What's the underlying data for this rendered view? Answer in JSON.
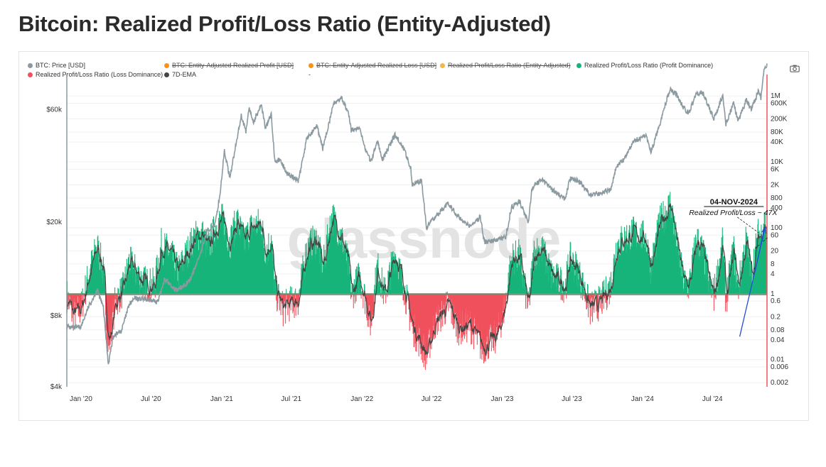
{
  "page": {
    "title": "Bitcoin: Realized Profit/Loss Ratio (Entity-Adjusted)"
  },
  "watermark": "glassnode",
  "legend": [
    {
      "label": "BTC: Price [USD]",
      "color": "#8b9aa0",
      "hidden": false
    },
    {
      "label": "BTC: Entity-Adjusted Realized Profit [USD]",
      "color": "#f7931a",
      "hidden": true
    },
    {
      "label": "BTC: Entity-Adjusted Realized Loss [USD]",
      "color": "#f7931a",
      "hidden": true
    },
    {
      "label": "Realized Profit/Loss Ratio (Entity-Adjusted)",
      "color": "#f2b84b",
      "hidden": true
    },
    {
      "label": "Realized Profit/Loss Ratio (Profit Dominance)",
      "color": "#17b47a",
      "hidden": false
    },
    {
      "label": "Realized Profit/Loss Ratio (Loss Dominance)",
      "color": "#f0515d",
      "hidden": false
    },
    {
      "label": "7D-EMA",
      "color": "#444444",
      "hidden": false
    },
    {
      "label": "-",
      "color": "",
      "hidden": false
    }
  ],
  "toolbar": {
    "camera_icon": "camera-icon"
  },
  "annotation": {
    "date": "04-NOV-2024",
    "text": "Realized Profit/Loss ~ 47X"
  },
  "chart_data": {
    "type": "line",
    "title": "Bitcoin: Realized Profit/Loss Ratio (Entity-Adjusted)",
    "x_tick_labels": [
      "Jan '20",
      "Jul '20",
      "Jan '21",
      "Jul '21",
      "Jan '22",
      "Jul '22",
      "Jan '23",
      "Jul '23",
      "Jan '24",
      "Jul '24"
    ],
    "x_range": [
      "2019-11-25",
      "2024-11-20"
    ],
    "left_axis": {
      "scale": "log",
      "tick_labels": [
        "$60k",
        "$20k",
        "$8k",
        "$4k"
      ],
      "tick_values": [
        60000,
        20000,
        8000,
        4000
      ],
      "range": [
        4000,
        80000
      ]
    },
    "right_axis": {
      "scale": "log",
      "tick_labels": [
        "1M",
        "600K",
        "200K",
        "80K",
        "40K",
        "10K",
        "6K",
        "2K",
        "800",
        "400",
        "100",
        "60",
        "20",
        "8",
        "4",
        "1",
        "0.6",
        "0.2",
        "0.08",
        "0.04",
        "0.01",
        "0.006",
        "0.002"
      ],
      "tick_values": [
        1000000,
        600000,
        200000,
        80000,
        40000,
        10000,
        6000,
        2000,
        800,
        400,
        100,
        60,
        20,
        8,
        4,
        1,
        0.6,
        0.2,
        0.08,
        0.04,
        0.01,
        0.006,
        0.002
      ],
      "range": [
        0.0015,
        3000000
      ]
    },
    "series": [
      {
        "name": "BTC: Price [USD]",
        "axis": "left",
        "color": "#8b9aa0",
        "points": [
          [
            "2019-11-25",
            7200
          ],
          [
            "2019-12-15",
            7100
          ],
          [
            "2020-01-01",
            7200
          ],
          [
            "2020-01-20",
            8700
          ],
          [
            "2020-02-12",
            10300
          ],
          [
            "2020-02-28",
            8700
          ],
          [
            "2020-03-12",
            5000
          ],
          [
            "2020-03-25",
            6600
          ],
          [
            "2020-04-15",
            6900
          ],
          [
            "2020-05-05",
            8900
          ],
          [
            "2020-05-20",
            9500
          ],
          [
            "2020-06-15",
            9400
          ],
          [
            "2020-07-20",
            9200
          ],
          [
            "2020-08-05",
            11500
          ],
          [
            "2020-09-05",
            10200
          ],
          [
            "2020-10-10",
            11300
          ],
          [
            "2020-10-25",
            13000
          ],
          [
            "2020-11-10",
            15300
          ],
          [
            "2020-11-25",
            18500
          ],
          [
            "2020-12-15",
            19500
          ],
          [
            "2020-12-28",
            26500
          ],
          [
            "2021-01-08",
            40000
          ],
          [
            "2021-01-22",
            31000
          ],
          [
            "2021-02-10",
            45000
          ],
          [
            "2021-02-21",
            57000
          ],
          [
            "2021-03-05",
            48000
          ],
          [
            "2021-03-13",
            61000
          ],
          [
            "2021-03-25",
            53000
          ],
          [
            "2021-04-14",
            63000
          ],
          [
            "2021-04-25",
            50000
          ],
          [
            "2021-05-10",
            57000
          ],
          [
            "2021-05-19",
            37000
          ],
          [
            "2021-06-05",
            36000
          ],
          [
            "2021-06-22",
            32000
          ],
          [
            "2021-07-20",
            30000
          ],
          [
            "2021-08-10",
            45000
          ],
          [
            "2021-09-06",
            51000
          ],
          [
            "2021-09-21",
            41000
          ],
          [
            "2021-10-10",
            55000
          ],
          [
            "2021-10-20",
            64000
          ],
          [
            "2021-11-10",
            67000
          ],
          [
            "2021-11-28",
            57000
          ],
          [
            "2021-12-04",
            49000
          ],
          [
            "2021-12-25",
            50000
          ],
          [
            "2022-01-10",
            41000
          ],
          [
            "2022-01-24",
            36000
          ],
          [
            "2022-02-10",
            44000
          ],
          [
            "2022-02-24",
            37000
          ],
          [
            "2022-03-28",
            47000
          ],
          [
            "2022-04-20",
            41000
          ],
          [
            "2022-05-08",
            34000
          ],
          [
            "2022-05-12",
            29000
          ],
          [
            "2022-06-05",
            30000
          ],
          [
            "2022-06-18",
            19000
          ],
          [
            "2022-07-10",
            21000
          ],
          [
            "2022-08-14",
            24000
          ],
          [
            "2022-09-10",
            21000
          ],
          [
            "2022-10-10",
            19200
          ],
          [
            "2022-11-05",
            21000
          ],
          [
            "2022-11-15",
            16500
          ],
          [
            "2022-12-20",
            16800
          ],
          [
            "2023-01-10",
            17300
          ],
          [
            "2023-01-25",
            23000
          ],
          [
            "2023-02-15",
            24500
          ],
          [
            "2023-03-10",
            20000
          ],
          [
            "2023-03-20",
            28000
          ],
          [
            "2023-04-14",
            30500
          ],
          [
            "2023-05-10",
            27500
          ],
          [
            "2023-06-15",
            25000
          ],
          [
            "2023-06-25",
            30500
          ],
          [
            "2023-07-15",
            30300
          ],
          [
            "2023-08-18",
            26200
          ],
          [
            "2023-09-15",
            26500
          ],
          [
            "2023-10-10",
            27500
          ],
          [
            "2023-10-25",
            34500
          ],
          [
            "2023-11-15",
            37000
          ],
          [
            "2023-12-08",
            44000
          ],
          [
            "2024-01-10",
            46500
          ],
          [
            "2024-01-23",
            39500
          ],
          [
            "2024-02-15",
            52000
          ],
          [
            "2024-03-05",
            67000
          ],
          [
            "2024-03-14",
            73000
          ],
          [
            "2024-04-01",
            69000
          ],
          [
            "2024-04-17",
            61000
          ],
          [
            "2024-05-01",
            58000
          ],
          [
            "2024-05-21",
            71000
          ],
          [
            "2024-06-07",
            70000
          ],
          [
            "2024-06-24",
            60500
          ],
          [
            "2024-07-05",
            55000
          ],
          [
            "2024-07-28",
            69000
          ],
          [
            "2024-08-05",
            52000
          ],
          [
            "2024-08-25",
            64000
          ],
          [
            "2024-09-06",
            53500
          ],
          [
            "2024-09-27",
            66000
          ],
          [
            "2024-10-10",
            60000
          ],
          [
            "2024-10-29",
            72000
          ],
          [
            "2024-11-04",
            67500
          ],
          [
            "2024-11-12",
            88000
          ],
          [
            "2024-11-20",
            92000
          ]
        ]
      },
      {
        "name": "Realized Profit/Loss Ratio (Entity-Adjusted)",
        "axis": "right",
        "profit_color": "#17b47a",
        "loss_color": "#f0515d",
        "baseline": 1,
        "points": [
          [
            "2019-11-25",
            0.8
          ],
          [
            "2019-12-10",
            0.2
          ],
          [
            "2020-01-01",
            0.3
          ],
          [
            "2020-01-20",
            3
          ],
          [
            "2020-02-12",
            25
          ],
          [
            "2020-02-28",
            4
          ],
          [
            "2020-03-12",
            0.02
          ],
          [
            "2020-03-30",
            0.5
          ],
          [
            "2020-04-20",
            1.2
          ],
          [
            "2020-05-05",
            8
          ],
          [
            "2020-06-10",
            2
          ],
          [
            "2020-07-10",
            1.5
          ],
          [
            "2020-07-28",
            25
          ],
          [
            "2020-08-20",
            15
          ],
          [
            "2020-09-10",
            4
          ],
          [
            "2020-10-20",
            40
          ],
          [
            "2020-11-10",
            60
          ],
          [
            "2020-11-26",
            20
          ],
          [
            "2020-12-20",
            120
          ],
          [
            "2021-01-05",
            150
          ],
          [
            "2021-01-22",
            30
          ],
          [
            "2021-02-10",
            150
          ],
          [
            "2021-03-01",
            30
          ],
          [
            "2021-03-15",
            80
          ],
          [
            "2021-04-14",
            120
          ],
          [
            "2021-04-25",
            15
          ],
          [
            "2021-05-10",
            40
          ],
          [
            "2021-05-19",
            1.2
          ],
          [
            "2021-06-10",
            0.3
          ],
          [
            "2021-06-22",
            0.4
          ],
          [
            "2021-07-20",
            0.6
          ],
          [
            "2021-08-10",
            20
          ],
          [
            "2021-09-06",
            40
          ],
          [
            "2021-09-21",
            5
          ],
          [
            "2021-10-15",
            200
          ],
          [
            "2021-11-10",
            40
          ],
          [
            "2021-11-28",
            5
          ],
          [
            "2021-12-05",
            0.8
          ],
          [
            "2021-12-25",
            3
          ],
          [
            "2022-01-10",
            0.6
          ],
          [
            "2022-01-24",
            0.1
          ],
          [
            "2022-02-10",
            6
          ],
          [
            "2022-03-01",
            0.8
          ],
          [
            "2022-03-28",
            15
          ],
          [
            "2022-04-20",
            1.5
          ],
          [
            "2022-05-10",
            0.1
          ],
          [
            "2022-06-18",
            0.012
          ],
          [
            "2022-07-10",
            0.12
          ],
          [
            "2022-08-14",
            0.4
          ],
          [
            "2022-09-10",
            0.08
          ],
          [
            "2022-10-10",
            0.1
          ],
          [
            "2022-11-10",
            0.02
          ],
          [
            "2022-12-20",
            0.05
          ],
          [
            "2023-01-10",
            0.5
          ],
          [
            "2023-01-25",
            10
          ],
          [
            "2023-02-15",
            12
          ],
          [
            "2023-03-10",
            0.3
          ],
          [
            "2023-03-25",
            15
          ],
          [
            "2023-04-14",
            20
          ],
          [
            "2023-05-10",
            3
          ],
          [
            "2023-06-15",
            1.5
          ],
          [
            "2023-06-25",
            10
          ],
          [
            "2023-07-15",
            5
          ],
          [
            "2023-08-18",
            0.3
          ],
          [
            "2023-09-15",
            0.5
          ],
          [
            "2023-10-10",
            1.5
          ],
          [
            "2023-10-25",
            25
          ],
          [
            "2023-11-15",
            40
          ],
          [
            "2023-12-08",
            60
          ],
          [
            "2024-01-10",
            40
          ],
          [
            "2024-01-23",
            5
          ],
          [
            "2024-02-15",
            120
          ],
          [
            "2024-03-05",
            300
          ],
          [
            "2024-03-14",
            500
          ],
          [
            "2024-04-01",
            20
          ],
          [
            "2024-04-17",
            2
          ],
          [
            "2024-05-01",
            1.5
          ],
          [
            "2024-05-21",
            40
          ],
          [
            "2024-06-07",
            15
          ],
          [
            "2024-06-24",
            1.5
          ],
          [
            "2024-07-05",
            0.8
          ],
          [
            "2024-07-28",
            30
          ],
          [
            "2024-08-05",
            0.5
          ],
          [
            "2024-08-25",
            20
          ],
          [
            "2024-09-06",
            1.2
          ],
          [
            "2024-09-27",
            40
          ],
          [
            "2024-10-10",
            3
          ],
          [
            "2024-10-29",
            60
          ],
          [
            "2024-11-04",
            47
          ],
          [
            "2024-11-12",
            150
          ],
          [
            "2024-11-20",
            80
          ]
        ]
      },
      {
        "name": "7D-EMA",
        "axis": "right",
        "color": "#444444"
      }
    ],
    "annotations": [
      {
        "date": "2024-11-04",
        "value": 47,
        "label_date": "04-NOV-2024",
        "label": "Realized Profit/Loss ~ 47X"
      }
    ],
    "trend_line": {
      "from": [
        "2024-09-10",
        0.05
      ],
      "to": [
        "2024-11-15",
        100
      ],
      "color": "#1f4fd6"
    },
    "legend_position": "top-left",
    "grid": true
  }
}
